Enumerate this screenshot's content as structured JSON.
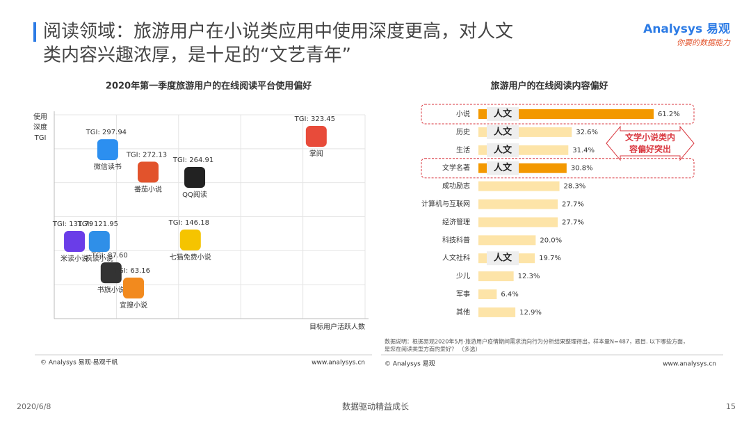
{
  "header": {
    "title": [
      "阅读领域：旅游用户在小说类应用中使用深度更高，对人文",
      "类内容兴趣浓厚，是十足的“文艺青年”"
    ],
    "logo": "Analysys 易观",
    "slogan": "你要的数据能力"
  },
  "chart_data": [
    {
      "type": "scatter",
      "title": "2020年第一季度旅游用户的在线阅读平台使用偏好",
      "y_label": [
        "使用",
        "深度",
        "TGI"
      ],
      "x_label": "目标用户活跃人数",
      "categories": [
        "微信读书",
        "番茄小说",
        "QQ阅读",
        "掌阅",
        "米读小说",
        "疯读小说",
        "七猫免费小说",
        "书旗小说",
        "宜搜小说"
      ],
      "x": [
        17.2,
        30.2,
        45.2,
        84.3,
        6.5,
        14.5,
        43.8,
        18.3,
        25.5
      ],
      "values": [
        82.9,
        71.9,
        69.3,
        89.4,
        37.9,
        37.9,
        38.6,
        22.5,
        15.0
      ],
      "value_labels": [
        "TGI: 297.94",
        "TGI: 272.13",
        "TGI: 264.91",
        "TGI: 323.45",
        "TGI: 131.79",
        "TGI: 121.95",
        "TGI: 146.18",
        "TGI: 87.60",
        "TGI: 63.16"
      ],
      "colors": [
        "#2c8ff0",
        "#e2532c",
        "#222222",
        "#e84b3a",
        "#6a3de8",
        "#2f8fe8",
        "#f5c400",
        "#333333",
        "#f28a1e"
      ],
      "xlim": [
        0,
        100
      ],
      "ylim": [
        0,
        100
      ],
      "source": "© Analysys 易观‧易观千帆",
      "url": "www.analysys.cn"
    },
    {
      "type": "bar",
      "title": "旅游用户的在线阅读内容偏好",
      "categories": [
        "小说",
        "历史",
        "生活",
        "文学名著",
        "成功励志",
        "计算机与互联网",
        "经济管理",
        "科技科普",
        "人文社科",
        "少儿",
        "军事",
        "其他"
      ],
      "values": [
        61.2,
        32.6,
        31.4,
        30.8,
        28.3,
        27.7,
        27.7,
        20.0,
        19.7,
        12.3,
        6.4,
        12.9
      ],
      "value_labels": [
        "61.2%",
        "32.6%",
        "31.4%",
        "30.8%",
        "28.3%",
        "27.7%",
        "27.7%",
        "20.0%",
        "19.7%",
        "12.3%",
        "6.4%",
        "12.9%"
      ],
      "colors": [
        "#f39800",
        "#fde4a8",
        "#fde4a8",
        "#f39800",
        "#fde4a8",
        "#fde4a8",
        "#fde4a8",
        "#fde4a8",
        "#fde4a8",
        "#fde4a8",
        "#fde4a8",
        "#fde4a8"
      ],
      "tags": [
        "人文",
        "人文",
        "人文",
        "人文",
        null,
        null,
        null,
        null,
        "人文",
        null,
        null,
        null
      ],
      "annotation": [
        "文学小说类内",
        "容偏好突出"
      ],
      "note": [
        "数据说明：根据易观2020年5月‧旅游用户疫情期间需求流向行为分析结果整理得出，样本量N=487，题目. 以下哪些方面，",
        "是您在阅读类型方面的爱好？ （多选）"
      ],
      "source": "© Analysys 易观",
      "url": "www.analysys.cn"
    }
  ],
  "footer": {
    "date": "2020/6/8",
    "slogan": "数据驱动精益成长",
    "page": "15"
  }
}
